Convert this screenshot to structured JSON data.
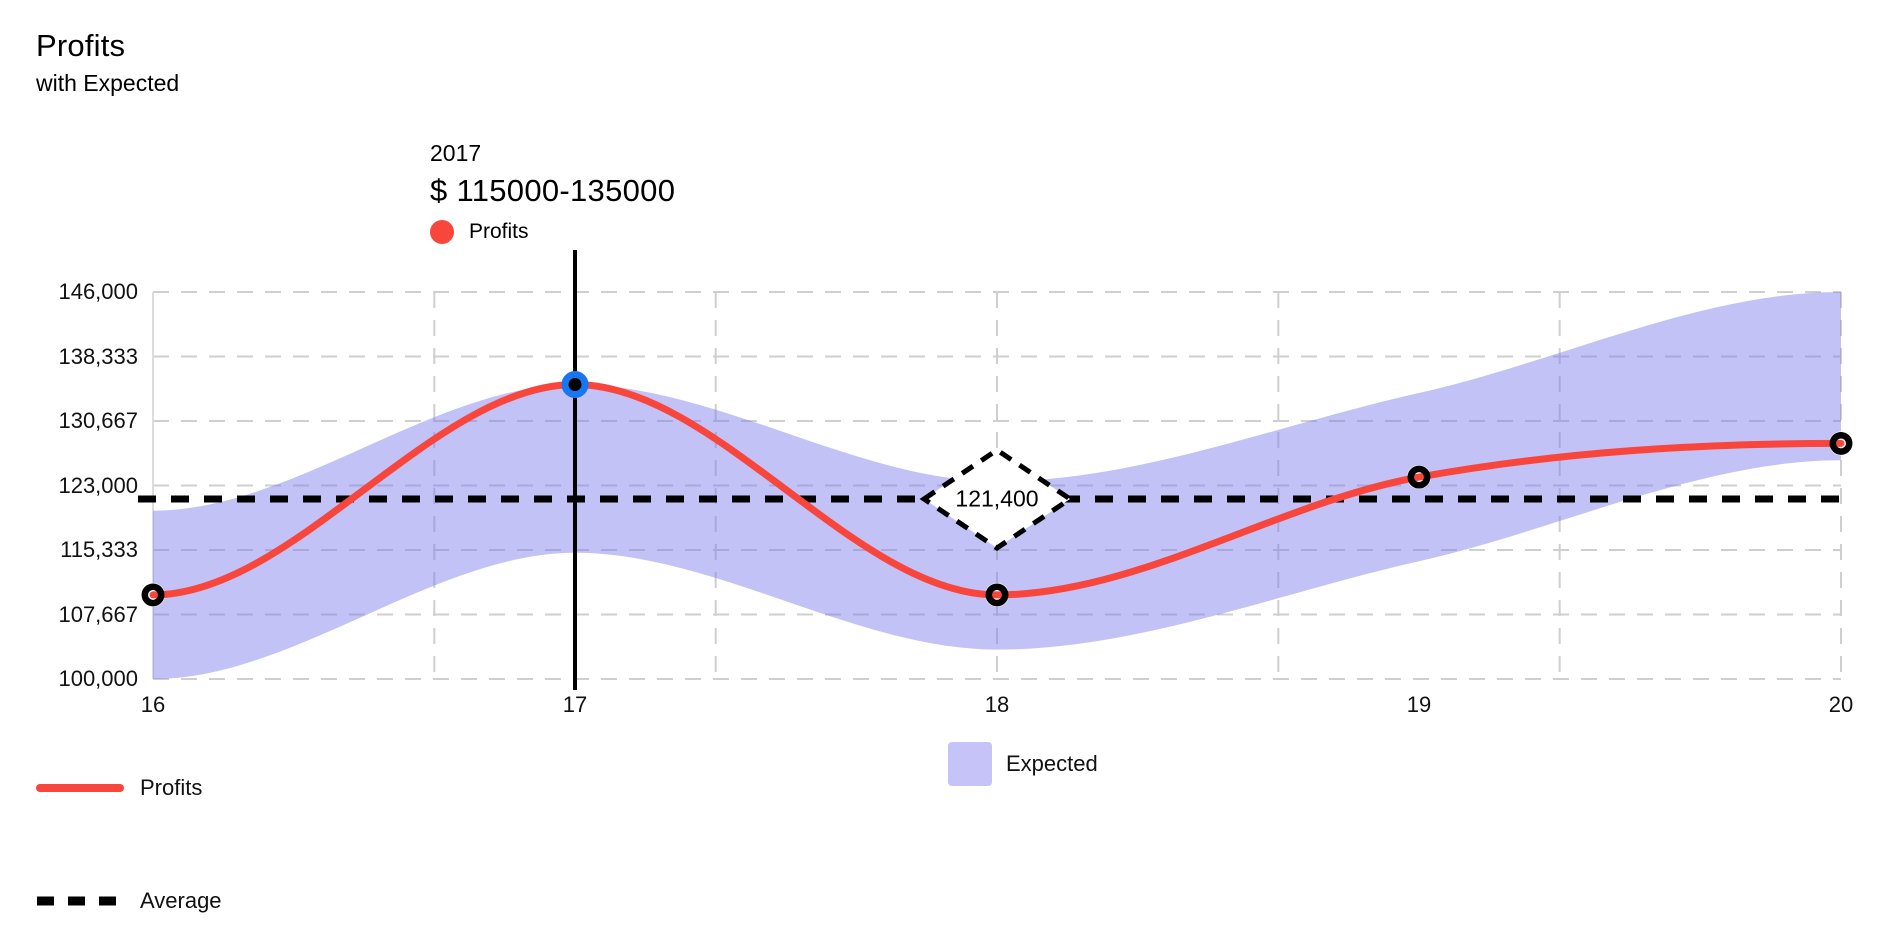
{
  "title": "Profits",
  "subtitle": "with Expected",
  "tooltip": {
    "year": "2017",
    "value": "$ 115000-135000",
    "series_label": "Profits",
    "dot_color": "#F8463D"
  },
  "legend": {
    "items": [
      {
        "id": "profits",
        "label": "Profits",
        "swatch": "line",
        "color": "#F8463D"
      },
      {
        "id": "average",
        "label": "Average",
        "swatch": "dashed-line",
        "color": "#000000"
      },
      {
        "id": "expected",
        "label": "Expected",
        "swatch": "square",
        "color": "#C5C3F7"
      }
    ]
  },
  "chart_data": {
    "type": "line",
    "title": "Profits",
    "subtitle": "with Expected",
    "x": [
      16,
      17,
      18,
      19,
      20
    ],
    "x_tick_labels": [
      "16",
      "17",
      "18",
      "19",
      "20"
    ],
    "y_tick_labels": [
      "146,000",
      "138,333",
      "130,667",
      "123,000",
      "115,333",
      "107,667",
      "100,000"
    ],
    "xlim": [
      16,
      20
    ],
    "ylim": [
      100000,
      146000
    ],
    "grid": "dashed",
    "grid_color": "#CFCFCF",
    "series": [
      {
        "name": "Profits",
        "type": "smoothed-line",
        "color": "#F8463D",
        "values": [
          110000,
          135000,
          110000,
          124000,
          128000
        ]
      },
      {
        "name": "Expected",
        "type": "band",
        "color": "#7B78EA",
        "opacity": 0.45,
        "lower": [
          100000,
          115000,
          103500,
          114000,
          126000
        ],
        "upper": [
          120000,
          135000,
          123500,
          134000,
          146000
        ]
      },
      {
        "name": "Average",
        "type": "horizontal-dashed-line",
        "color": "#000000",
        "value": 121400
      }
    ],
    "annotation": {
      "label": "121,400",
      "x": 18,
      "y": 121400,
      "shape": "dashed-diamond"
    },
    "selected_point": {
      "series": "Profits",
      "x": 17,
      "value": 135000,
      "marker_ring_color": "#1777F2",
      "marker_core_color": "#000000",
      "vertical_line": true
    }
  }
}
